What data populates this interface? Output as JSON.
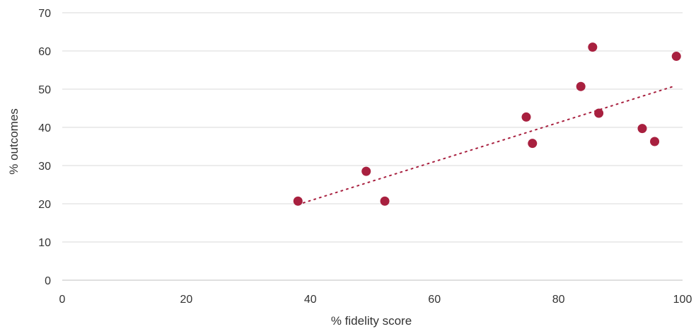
{
  "chart_data": {
    "type": "scatter",
    "title": "",
    "xlabel": "% fidelity score",
    "ylabel": "% outcomes",
    "xlim": [
      0,
      100
    ],
    "ylim": [
      0,
      70
    ],
    "xticks": [
      0,
      20,
      40,
      60,
      80,
      100
    ],
    "yticks": [
      0,
      10,
      20,
      30,
      40,
      50,
      60,
      70
    ],
    "grid": true,
    "grid_axis": "y",
    "marker_color": "#a8203f",
    "trendline": {
      "style": "dotted",
      "color": "#a8203f",
      "x_start": 38,
      "x_end": 98.5,
      "y_start": 19.8,
      "y_end": 50.7
    },
    "series": [
      {
        "points": [
          {
            "x": 38,
            "y": 20.7
          },
          {
            "x": 49,
            "y": 28.5
          },
          {
            "x": 52,
            "y": 20.7
          },
          {
            "x": 74.8,
            "y": 42.7
          },
          {
            "x": 75.8,
            "y": 35.8
          },
          {
            "x": 83.6,
            "y": 50.7
          },
          {
            "x": 85.5,
            "y": 61
          },
          {
            "x": 86.5,
            "y": 43.7
          },
          {
            "x": 93.5,
            "y": 39.7
          },
          {
            "x": 95.5,
            "y": 36.3
          },
          {
            "x": 99,
            "y": 58.6
          }
        ]
      }
    ]
  }
}
